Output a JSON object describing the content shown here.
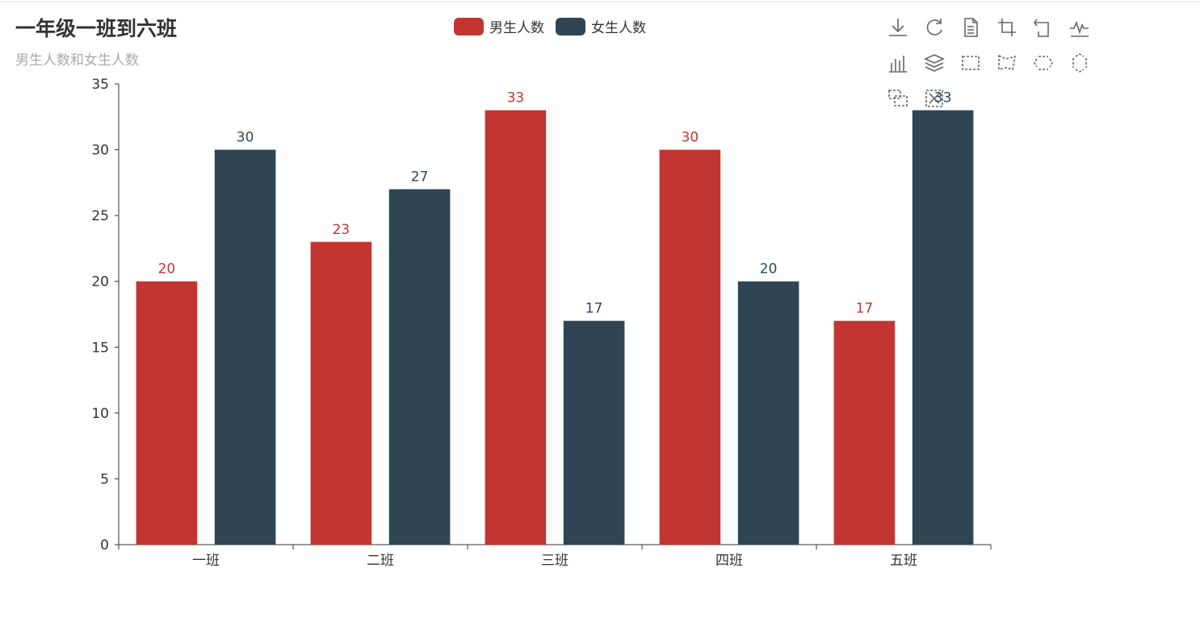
{
  "colors": {
    "series_male": "#c23531",
    "series_female": "#2f4554",
    "axis": "#333333",
    "title": "#333333",
    "subtitle": "#aaaaaa"
  },
  "toolbox": [
    {
      "name": "download-icon",
      "icon": "download"
    },
    {
      "name": "refresh-icon",
      "icon": "refresh"
    },
    {
      "name": "data-view-icon",
      "icon": "document"
    },
    {
      "name": "zoom-icon",
      "icon": "zoom"
    },
    {
      "name": "zoom-back-icon",
      "icon": "zoom-back"
    },
    {
      "name": "line-chart-icon",
      "icon": "line"
    },
    {
      "name": "bar-chart-icon",
      "icon": "bar"
    },
    {
      "name": "stack-icon",
      "icon": "stack"
    },
    {
      "name": "rect-select-icon",
      "icon": "rect"
    },
    {
      "name": "polygon-select-icon",
      "icon": "polygon"
    },
    {
      "name": "line-x-select-icon",
      "icon": "linex"
    },
    {
      "name": "line-y-select-icon",
      "icon": "liney"
    },
    {
      "name": "keep-selection-icon",
      "icon": "keep"
    },
    {
      "name": "clear-selection-icon",
      "icon": "clear"
    }
  ],
  "chart_data": {
    "type": "bar",
    "title": "一年级一班到六班",
    "subtitle": "男生人数和女生人数",
    "categories": [
      "一班",
      "二班",
      "三班",
      "四班",
      "五班"
    ],
    "series": [
      {
        "name": "男生人数",
        "values": [
          20,
          23,
          33,
          30,
          17
        ]
      },
      {
        "name": "女生人数",
        "values": [
          30,
          27,
          17,
          20,
          33
        ]
      }
    ],
    "ylim": [
      0,
      35
    ],
    "yticks": [
      0,
      5,
      10,
      15,
      20,
      25,
      30,
      35
    ],
    "xlabel": "",
    "ylabel": "",
    "legend_position": "top-center",
    "grid": false
  }
}
